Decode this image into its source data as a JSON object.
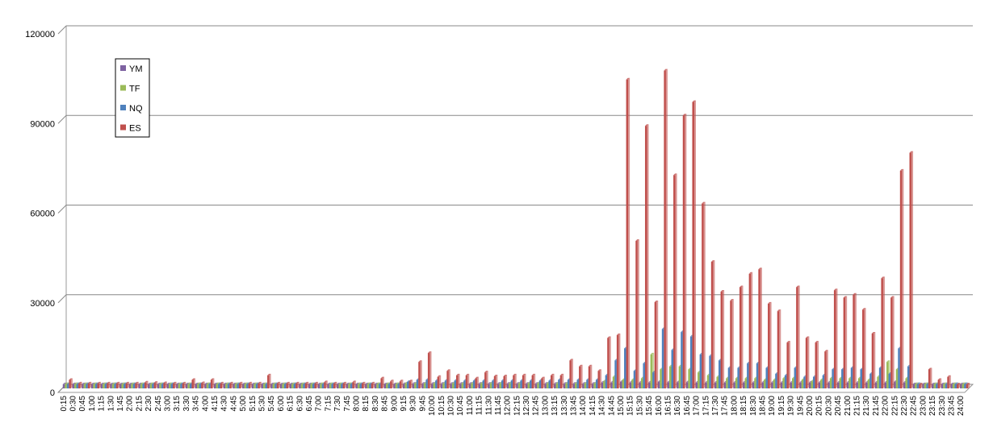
{
  "chart_data": {
    "type": "bar3d",
    "categories": [
      "0:15",
      "0:30",
      "0:45",
      "1:00",
      "1:15",
      "1:30",
      "1:45",
      "2:00",
      "2:15",
      "2:30",
      "2:45",
      "3:00",
      "3:15",
      "3:30",
      "3:45",
      "4:00",
      "4:15",
      "4:30",
      "4:45",
      "5:00",
      "5:15",
      "5:30",
      "5:45",
      "6:00",
      "6:15",
      "6:30",
      "6:45",
      "7:00",
      "7:15",
      "7:30",
      "7:45",
      "8:00",
      "8:15",
      "8:30",
      "8:45",
      "9:00",
      "9:15",
      "9:30",
      "9:45",
      "10:00",
      "10:15",
      "10:30",
      "10:45",
      "11:00",
      "11:15",
      "11:30",
      "11:45",
      "12:00",
      "12:15",
      "12:30",
      "12:45",
      "13:00",
      "13:15",
      "13:30",
      "13:45",
      "14:00",
      "14:15",
      "14:30",
      "14:45",
      "15:00",
      "15:15",
      "15:30",
      "15:45",
      "16:00",
      "16:15",
      "16:30",
      "16:45",
      "17:00",
      "17:15",
      "17:30",
      "17:45",
      "18:00",
      "18:15",
      "18:30",
      "18:45",
      "19:00",
      "19:15",
      "19:30",
      "19:45",
      "20:00",
      "20:15",
      "20:30",
      "20:45",
      "21:00",
      "21:15",
      "21:30",
      "21:45",
      "22:00",
      "22:15",
      "22:30",
      "22:45",
      "23:00",
      "23:15",
      "23:30",
      "23:45",
      "24:00"
    ],
    "series": [
      {
        "name": "YM",
        "color": "#7e62a1",
        "values": [
          50,
          50,
          50,
          50,
          50,
          50,
          50,
          50,
          50,
          50,
          50,
          50,
          50,
          50,
          50,
          50,
          50,
          50,
          50,
          50,
          50,
          50,
          50,
          50,
          50,
          50,
          50,
          50,
          50,
          50,
          50,
          50,
          50,
          50,
          50,
          50,
          100,
          200,
          200,
          200,
          200,
          200,
          200,
          200,
          200,
          200,
          200,
          200,
          200,
          200,
          200,
          200,
          200,
          200,
          200,
          200,
          200,
          600,
          600,
          800,
          600,
          600,
          600,
          800,
          700,
          700,
          700,
          600,
          600,
          600,
          600,
          600,
          600,
          600,
          600,
          600,
          600,
          600,
          600,
          600,
          600,
          600,
          600,
          600,
          600,
          600,
          600,
          600,
          800,
          600,
          50,
          50,
          50,
          50,
          50,
          50
        ]
      },
      {
        "name": "TF",
        "color": "#9bbb59",
        "values": [
          100,
          100,
          100,
          100,
          100,
          100,
          100,
          100,
          100,
          100,
          100,
          100,
          100,
          100,
          100,
          100,
          100,
          100,
          100,
          100,
          100,
          100,
          100,
          100,
          100,
          100,
          100,
          100,
          100,
          100,
          100,
          100,
          100,
          100,
          100,
          100,
          300,
          300,
          300,
          300,
          300,
          300,
          300,
          300,
          300,
          300,
          300,
          300,
          300,
          300,
          300,
          300,
          300,
          300,
          300,
          300,
          300,
          1000,
          2500,
          1500,
          1500,
          2000,
          10000,
          5000,
          6000,
          6000,
          5000,
          4000,
          3000,
          2500,
          2000,
          2000,
          2000,
          2000,
          1500,
          1500,
          2000,
          2000,
          1500,
          1000,
          1500,
          2000,
          2000,
          2000,
          2000,
          1500,
          2500,
          7500,
          5000,
          2000,
          100,
          100,
          100,
          100,
          100,
          100
        ]
      },
      {
        "name": "NQ",
        "color": "#4f81bd",
        "values": [
          100,
          100,
          100,
          100,
          100,
          100,
          100,
          100,
          100,
          100,
          100,
          100,
          100,
          100,
          100,
          100,
          100,
          100,
          100,
          100,
          100,
          100,
          100,
          100,
          100,
          100,
          100,
          100,
          100,
          100,
          100,
          100,
          100,
          100,
          100,
          100,
          800,
          1500,
          1500,
          1200,
          1200,
          1200,
          1200,
          1200,
          1200,
          1200,
          1200,
          1200,
          1200,
          1200,
          1200,
          1200,
          1500,
          1500,
          1500,
          1500,
          1500,
          3000,
          8000,
          12000,
          4500,
          7000,
          4000,
          18500,
          11500,
          17500,
          16000,
          10000,
          9500,
          8000,
          5500,
          5500,
          7000,
          7000,
          5500,
          3500,
          3000,
          5500,
          2500,
          2500,
          3000,
          5000,
          5000,
          5500,
          5000,
          3500,
          5500,
          3500,
          12000,
          6000,
          100,
          100,
          100,
          100,
          100,
          100
        ]
      },
      {
        "name": "ES",
        "color": "#c0504d",
        "values": [
          1500,
          300,
          300,
          300,
          300,
          300,
          300,
          300,
          600,
          500,
          400,
          300,
          300,
          1500,
          400,
          1500,
          300,
          300,
          300,
          300,
          300,
          3000,
          300,
          300,
          300,
          300,
          300,
          700,
          300,
          300,
          700,
          300,
          300,
          2000,
          1000,
          1000,
          1000,
          7500,
          10500,
          2500,
          4500,
          3000,
          3000,
          2000,
          4000,
          2700,
          2700,
          3000,
          3000,
          3000,
          2000,
          3000,
          3000,
          8000,
          6000,
          6000,
          4500,
          15500,
          16500,
          102000,
          48000,
          86500,
          27500,
          105000,
          70000,
          90000,
          94500,
          60500,
          41000,
          31000,
          28000,
          32500,
          37000,
          38500,
          27000,
          24500,
          14000,
          32500,
          15500,
          14000,
          11000,
          31500,
          29000,
          30000,
          25000,
          17000,
          35500,
          29000,
          71500,
          77500,
          0,
          5000,
          1500,
          2500,
          0,
          0
        ]
      }
    ],
    "ylim": [
      0,
      120000
    ],
    "yticks": [
      0,
      30000,
      60000,
      90000,
      120000
    ],
    "grid": true,
    "legend": "upper-left"
  }
}
